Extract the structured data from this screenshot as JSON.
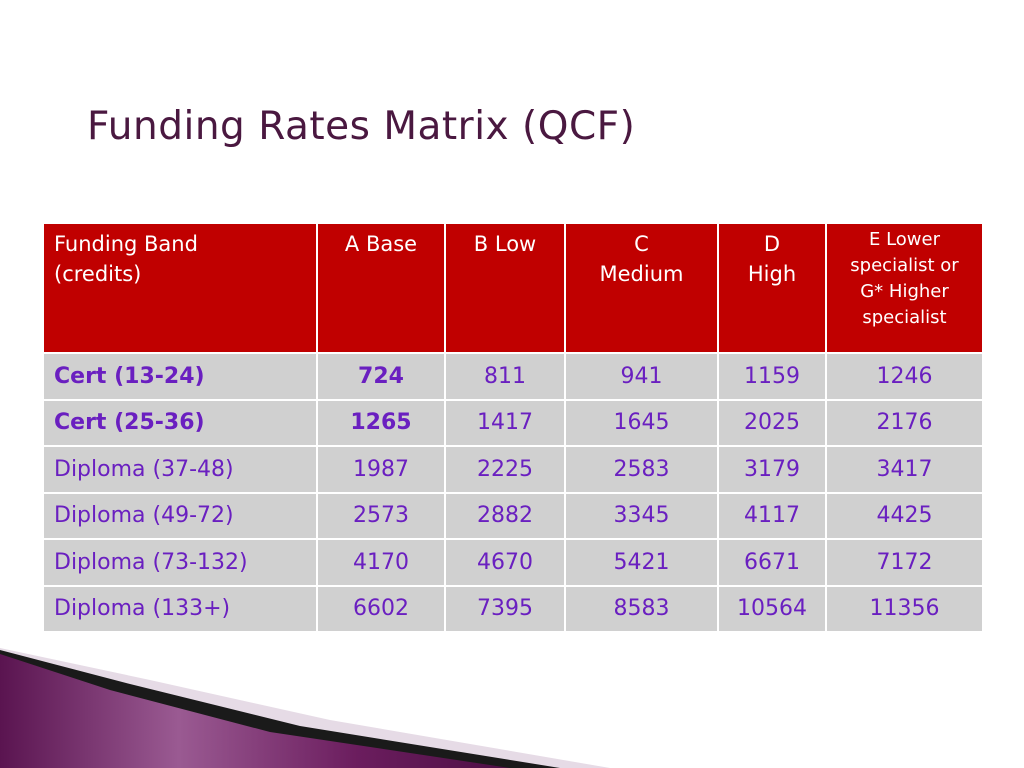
{
  "title": "Funding Rates Matrix (QCF)",
  "table": {
    "headers": [
      [
        "Funding  Band",
        "(credits)"
      ],
      [
        "A  Base"
      ],
      [
        "B  Low"
      ],
      [
        "C",
        "Medium"
      ],
      [
        "D",
        "High"
      ],
      [
        "E  Lower",
        "specialist or",
        "G* Higher",
        "specialist"
      ]
    ],
    "rows": [
      {
        "band": "Cert (13-24)",
        "a": "724",
        "b": "811",
        "c": "941",
        "d": "1159",
        "e": "1246"
      },
      {
        "band": "Cert (25-36)",
        "a": "1265",
        "b": "1417",
        "c": "1645",
        "d": "2025",
        "e": "2176"
      },
      {
        "band": "Diploma (37-48)",
        "a": "1987",
        "b": "2225",
        "c": "2583",
        "d": "3179",
        "e": "3417"
      },
      {
        "band": "Diploma (49-72)",
        "a": "2573",
        "b": "2882",
        "c": "3345",
        "d": "4117",
        "e": "4425"
      },
      {
        "band": "Diploma (73-132)",
        "a": "4170",
        "b": "4670",
        "c": "5421",
        "d": "6671",
        "e": "7172"
      },
      {
        "band": "Diploma (133+)",
        "a": "6602",
        "b": "7395",
        "c": "8583",
        "d": "10564",
        "e": "11356"
      }
    ]
  },
  "colors": {
    "title": "#4a1840",
    "header_bg": "#c00000",
    "header_text": "#ffffff",
    "cell_bg": "#d0d0d0",
    "cell_text": "#6a1fc0",
    "decor_purple": "#6b1d5e"
  }
}
